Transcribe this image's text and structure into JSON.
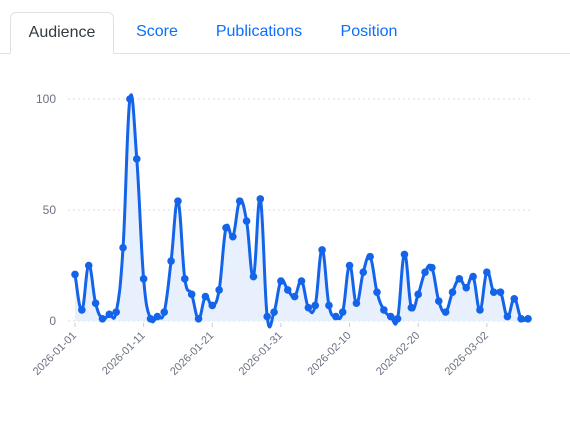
{
  "tabs": [
    {
      "label": "Audience",
      "active": true
    },
    {
      "label": "Score",
      "active": false
    },
    {
      "label": "Publications",
      "active": false
    },
    {
      "label": "Position",
      "active": false
    }
  ],
  "colors": {
    "accent": "#1464ea",
    "area": "#e8f0fd",
    "grid": "#dddddd",
    "tab_link": "#0d6efd"
  },
  "chart_data": {
    "type": "area",
    "x_start": "2026-01-01",
    "x_tick_labels": [
      "2026-01-01",
      "2026-01-11",
      "2026-01-21",
      "2026-01-31",
      "2026-02-10",
      "2026-02-20",
      "2026-03-02"
    ],
    "y_ticks": [
      0,
      50,
      100
    ],
    "ylim": [
      0,
      100
    ],
    "grid": true,
    "legend": "none",
    "values": [
      21,
      5,
      25,
      8,
      1,
      3,
      4,
      33,
      100,
      73,
      19,
      1,
      2,
      4,
      27,
      54,
      19,
      12,
      1,
      11,
      7,
      14,
      42,
      38,
      54,
      45,
      20,
      55,
      2,
      4,
      18,
      14,
      11,
      18,
      6,
      7,
      32,
      7,
      2,
      4,
      25,
      8,
      22,
      29,
      13,
      5,
      2,
      1,
      30,
      6,
      12,
      22,
      24,
      9,
      4,
      13,
      19,
      15,
      20,
      5,
      22,
      13,
      13,
      2,
      10,
      1,
      1
    ]
  }
}
